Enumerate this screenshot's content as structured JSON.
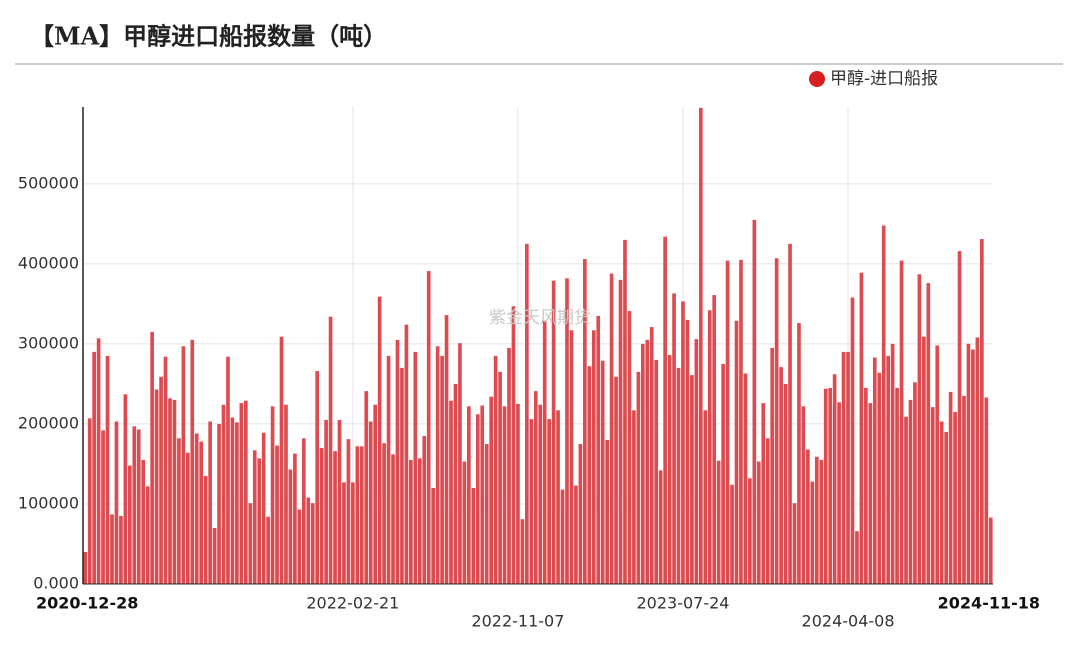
{
  "chart_data": {
    "type": "bar",
    "title": "【MA】甲醇进口船报数量（吨）",
    "watermark": "紫金天风期货",
    "categories": [
      "2020-12-28",
      null,
      null,
      null,
      null,
      null,
      null,
      null,
      null,
      null,
      null,
      null,
      null,
      null,
      null,
      null,
      null,
      null,
      null,
      null,
      null,
      null,
      null,
      null,
      null,
      null,
      null,
      null,
      null,
      null,
      null,
      null,
      null,
      null,
      null,
      null,
      null,
      null,
      null,
      null,
      null,
      null,
      null,
      null,
      null,
      null,
      null,
      null,
      null,
      null,
      null,
      null,
      null,
      null,
      null,
      null,
      null,
      null,
      null,
      null,
      "2022-02-21",
      null,
      null,
      null,
      null,
      null,
      null,
      null,
      null,
      null,
      null,
      null,
      null,
      null,
      null,
      null,
      null,
      null,
      null,
      null,
      null,
      null,
      null,
      null,
      null,
      null,
      null,
      null,
      null,
      null,
      null,
      null,
      null,
      null,
      null,
      null,
      null,
      "2022-11-07",
      null,
      null,
      null,
      null,
      null,
      null,
      null,
      null,
      null,
      null,
      null,
      null,
      null,
      null,
      null,
      null,
      null,
      null,
      null,
      null,
      null,
      null,
      null,
      null,
      null,
      null,
      null,
      null,
      null,
      null,
      null,
      null,
      null,
      null,
      null,
      null,
      "2023-07-24",
      null,
      null,
      null,
      null,
      null,
      null,
      null,
      null,
      null,
      null,
      null,
      null,
      null,
      null,
      null,
      null,
      null,
      null,
      null,
      null,
      null,
      null,
      null,
      null,
      null,
      null,
      null,
      null,
      null,
      null,
      null,
      null,
      null,
      null,
      null,
      null,
      "2024-04-08",
      null,
      null,
      null,
      null,
      null,
      null,
      null,
      null,
      null,
      null,
      null,
      null,
      null,
      null,
      null,
      null,
      null,
      null,
      null,
      null,
      null,
      null,
      null,
      null,
      null,
      null,
      null,
      null,
      null,
      null,
      null,
      "2024-11-18"
    ],
    "series": [
      {
        "name": "甲醇-进口船报",
        "color": "#dc4b50",
        "values": [
          40000,
          207000,
          290000,
          307000,
          192000,
          285000,
          87000,
          203000,
          85000,
          237000,
          148000,
          197000,
          193000,
          155000,
          122000,
          315000,
          243000,
          259000,
          284000,
          232000,
          230000,
          182000,
          297000,
          164000,
          305000,
          188000,
          178000,
          135000,
          203000,
          70000,
          200000,
          224000,
          284000,
          208000,
          202000,
          226000,
          229000,
          101000,
          167000,
          157000,
          189000,
          84000,
          222000,
          173000,
          309000,
          224000,
          143000,
          163000,
          93000,
          182000,
          108000,
          101000,
          266000,
          170000,
          205000,
          334000,
          166000,
          205000,
          127000,
          181000,
          127000,
          172000,
          172000,
          241000,
          203000,
          224000,
          359000,
          176000,
          285000,
          162000,
          305000,
          270000,
          324000,
          155000,
          290000,
          157000,
          185000,
          391000,
          120000,
          297000,
          285000,
          336000,
          229000,
          250000,
          301000,
          153000,
          222000,
          120000,
          212000,
          223000,
          175000,
          234000,
          285000,
          265000,
          222000,
          295000,
          347000,
          225000,
          81000,
          425000,
          206000,
          241000,
          224000,
          329000,
          206000,
          379000,
          217000,
          118000,
          382000,
          317000,
          123000,
          175000,
          406000,
          272000,
          317000,
          335000,
          279000,
          180000,
          388000,
          259000,
          380000,
          430000,
          341000,
          217000,
          265000,
          300000,
          305000,
          321000,
          280000,
          142000,
          434000,
          286000,
          363000,
          270000,
          353000,
          330000,
          261000,
          306000,
          595000,
          217000,
          342000,
          361000,
          154000,
          275000,
          404000,
          124000,
          329000,
          405000,
          263000,
          132000,
          455000,
          153000,
          226000,
          182000,
          295000,
          407000,
          271000,
          250000,
          425000,
          101000,
          326000,
          222000,
          168000,
          128000,
          159000,
          155000,
          244000,
          245000,
          262000,
          227000,
          290000,
          290000,
          358000,
          66000,
          389000,
          245000,
          226000,
          283000,
          264000,
          448000,
          285000,
          300000,
          245000,
          404000,
          209000,
          230000,
          252000,
          387000,
          309000,
          376000,
          221000,
          298000,
          203000,
          190000,
          240000,
          215000,
          416000,
          235000,
          300000,
          293000,
          308000,
          431000,
          233000,
          83000
        ]
      }
    ],
    "ylim": [
      0,
      596000
    ],
    "yticks": [
      {
        "value": 0,
        "label": "0.000"
      },
      100000,
      200000,
      300000,
      400000,
      500000
    ],
    "grid": true,
    "legend": "top-right"
  }
}
